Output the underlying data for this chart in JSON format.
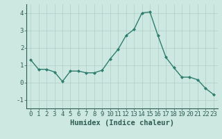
{
  "x": [
    0,
    1,
    2,
    3,
    4,
    5,
    6,
    7,
    8,
    9,
    10,
    11,
    12,
    13,
    14,
    15,
    16,
    17,
    18,
    19,
    20,
    21,
    22,
    23
  ],
  "y": [
    1.3,
    0.75,
    0.75,
    0.6,
    0.05,
    0.65,
    0.65,
    0.55,
    0.55,
    0.7,
    1.35,
    1.9,
    2.7,
    3.05,
    4.0,
    4.05,
    2.7,
    1.45,
    0.85,
    0.3,
    0.3,
    0.15,
    -0.35,
    -0.7
  ],
  "line_color": "#2e7d6e",
  "marker": "D",
  "marker_size": 2.0,
  "line_width": 1.0,
  "bg_color": "#cce8e0",
  "grid_color": "#b0cfc8",
  "xlabel": "Humidex (Indice chaleur)",
  "xlabel_fontsize": 7.5,
  "xlim": [
    -0.5,
    23.5
  ],
  "ylim": [
    -1.5,
    4.5
  ],
  "yticks": [
    -1,
    0,
    1,
    2,
    3,
    4
  ],
  "xticks": [
    0,
    1,
    2,
    3,
    4,
    5,
    6,
    7,
    8,
    9,
    10,
    11,
    12,
    13,
    14,
    15,
    16,
    17,
    18,
    19,
    20,
    21,
    22,
    23
  ],
  "tick_fontsize": 6.5,
  "axis_color": "#2e5c52",
  "figure_width": 3.2,
  "figure_height": 2.0,
  "dpi": 100
}
